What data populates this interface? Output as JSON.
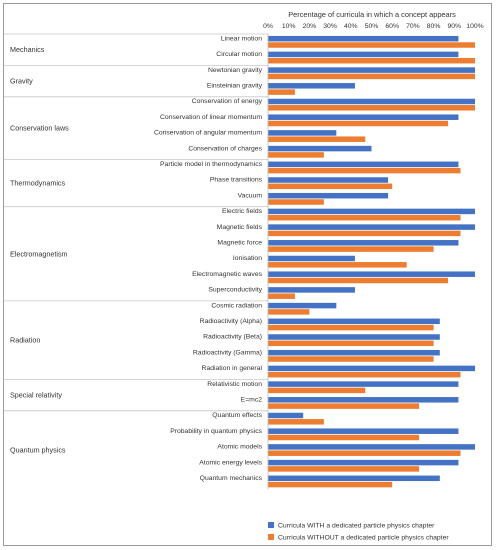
{
  "chart_data": {
    "type": "bar",
    "orientation": "horizontal",
    "title": "Percentage of curricula in which a concept appears",
    "xlim": [
      0,
      100
    ],
    "x_ticks": [
      "0%",
      "10%",
      "20%",
      "30%",
      "40%",
      "50%",
      "60%",
      "70%",
      "80%",
      "90%",
      "100%"
    ],
    "grid": false,
    "legend_position": "bottom-right",
    "series": [
      {
        "name": "Curricula WITH a dedicated particle physics chapter",
        "color": "#4472c4",
        "values": [
          92,
          92,
          100,
          42,
          100,
          92,
          33,
          50,
          92,
          58,
          58,
          100,
          100,
          92,
          42,
          100,
          42,
          33,
          83,
          83,
          83,
          100,
          92,
          92,
          17,
          92,
          100,
          92,
          83
        ]
      },
      {
        "name": "Curricula WITHOUT a dedicated particle physics chapter",
        "color": "#ed7d31",
        "values": [
          100,
          100,
          100,
          13,
          100,
          87,
          47,
          27,
          93,
          60,
          27,
          93,
          93,
          80,
          67,
          87,
          13,
          20,
          80,
          80,
          80,
          93,
          47,
          73,
          27,
          73,
          93,
          73,
          60
        ]
      }
    ],
    "groups": [
      {
        "name": "Mechanics",
        "concepts": [
          "Linear motion",
          "Circular motion"
        ]
      },
      {
        "name": "Gravity",
        "concepts": [
          "Newtonian gravity",
          "Einsteinian gravity"
        ]
      },
      {
        "name": "Conservation laws",
        "concepts": [
          "Conservation of energy",
          "Conservation of linear momentum",
          "Conservation of angular momentum",
          "Conservation of charges"
        ]
      },
      {
        "name": "Thermodynamics",
        "concepts": [
          "Particle model in thermodynamics",
          "Phase transitions",
          "Vacuum"
        ]
      },
      {
        "name": "Electromagnetism",
        "concepts": [
          "Electric fields",
          "Magnetic fields",
          "Magnetic force",
          "Ionisation",
          "Electromagnetic waves",
          "Superconductivity"
        ]
      },
      {
        "name": "Radiation",
        "concepts": [
          "Cosmic radiation",
          "Radioactivity (Alpha)",
          "Radioactivity (Beta)",
          "Radioactivity (Gamma)",
          "Radiation in general"
        ]
      },
      {
        "name": "Special relativity",
        "concepts": [
          "Relativistic motion",
          "E=mc2"
        ]
      },
      {
        "name": "Quantum physics",
        "concepts": [
          "Quantum effects",
          "Probability in quantum physics",
          "Atomic models",
          "Atomic energy levels",
          "Quantum mechanics"
        ]
      }
    ]
  }
}
